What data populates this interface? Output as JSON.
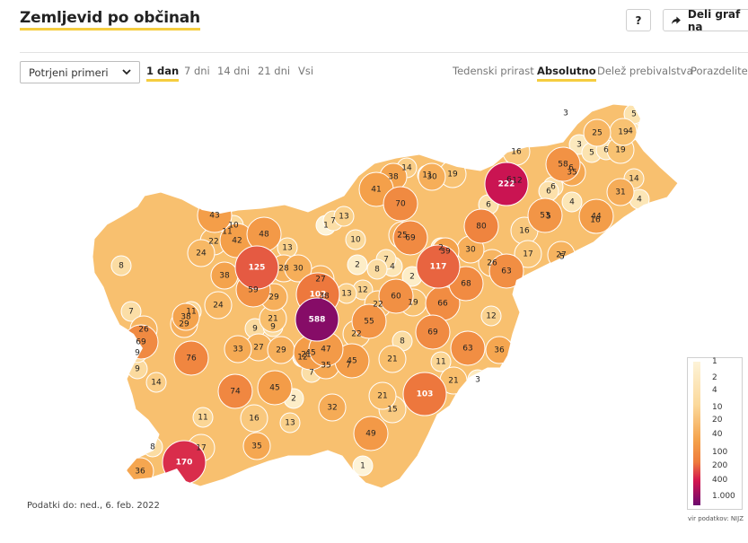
{
  "header": {
    "title": "Zemljevid po občinah",
    "help_label": "?",
    "share_label": "Deli graf na"
  },
  "controls": {
    "select_value": "Potrjeni primeri",
    "periods": [
      "1 dan",
      "7 dni",
      "14 dni",
      "21 dni",
      "Vsi"
    ],
    "active_period": "1 dan",
    "views": [
      "Tedenski prirast",
      "Absolutno",
      "Delež prebivalstva",
      "Porazdelitev"
    ],
    "active_view": "Absolutno"
  },
  "colors": {
    "accent": "#f5cd3f",
    "max": "#6b0a6e",
    "high": "#d3154f",
    "mid": "#ee7b3c",
    "low": "#fbd99b",
    "min": "#fdf3d8"
  },
  "map_data": {
    "metric": "Potrjeni primeri",
    "region_values": [
      222,
      588,
      170,
      125,
      117,
      103,
      102,
      80,
      76,
      74,
      70,
      69,
      69,
      69,
      68,
      63,
      63,
      60,
      59,
      58,
      55,
      53,
      49,
      48,
      47,
      45,
      45,
      45,
      44,
      43,
      42,
      41,
      39,
      38,
      38,
      38,
      38,
      36,
      36,
      35,
      35,
      35,
      33,
      32,
      31,
      30,
      30,
      30,
      29,
      29,
      29,
      28,
      27,
      27,
      27,
      26,
      26,
      25,
      25,
      24,
      24,
      22,
      22,
      22,
      21,
      21,
      21,
      21,
      21,
      19,
      19,
      19,
      19,
      17,
      17,
      16,
      16,
      16,
      16,
      15,
      14,
      14,
      14,
      13,
      13,
      13,
      13,
      12,
      12,
      12,
      12,
      11,
      11,
      11,
      11,
      11,
      10,
      10,
      9,
      9,
      9,
      9,
      8,
      8,
      8,
      8,
      7,
      7,
      7,
      7,
      7,
      6,
      6,
      6,
      6,
      6,
      6,
      5,
      5,
      5,
      5,
      4,
      4,
      4,
      4,
      3,
      3,
      3,
      2,
      2,
      2,
      2,
      1,
      1,
      66
    ]
  },
  "legend": {
    "ticks": [
      "1",
      "2",
      "4",
      "10",
      "20",
      "40",
      "100",
      "200",
      "400",
      "1.000"
    ]
  },
  "source": "vir podatkov: NIJZ",
  "footer": "Podatki do: ned., 6. feb. 2022"
}
